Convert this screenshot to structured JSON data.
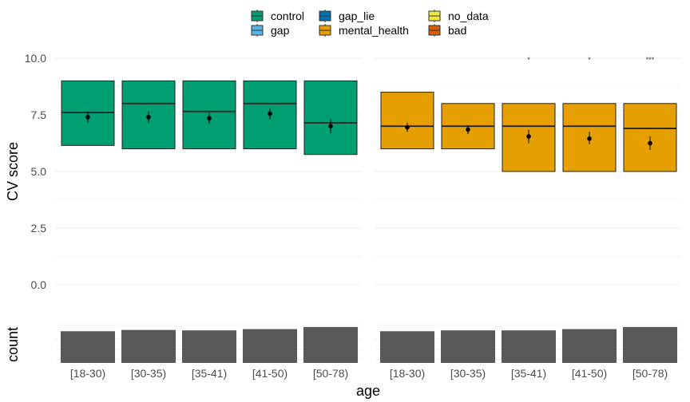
{
  "chart_data": {
    "type": "box",
    "legend": {
      "position": "top",
      "entries": [
        {
          "label": "control",
          "color": "#009E73"
        },
        {
          "label": "gap",
          "color": "#56B4E9"
        },
        {
          "label": "gap_lie",
          "color": "#0072B2"
        },
        {
          "label": "mental_health",
          "color": "#E69F00"
        },
        {
          "label": "no_data",
          "color": "#F0E442"
        },
        {
          "label": "bad",
          "color": "#D55E00"
        }
      ]
    },
    "ylabel": "CV score",
    "ylabel_count": "count",
    "xlabel": "age",
    "ylim": [
      -1.2,
      10.5
    ],
    "yticks": [
      "0.0",
      "2.5",
      "5.0",
      "7.5",
      "10.0"
    ],
    "grid": true,
    "categories": [
      "[18-30)",
      "[30-35)",
      "[35-41)",
      "[41-50)",
      "[50-78)"
    ],
    "panels": [
      {
        "group": "control",
        "color": "#009E73",
        "boxes": [
          {
            "q1": 6.15,
            "median": 7.6,
            "q3": 9.0,
            "mean": 7.4,
            "ci": [
              7.15,
              7.65
            ],
            "sig": ""
          },
          {
            "q1": 6.0,
            "median": 8.0,
            "q3": 9.0,
            "mean": 7.4,
            "ci": [
              7.15,
              7.65
            ],
            "sig": ""
          },
          {
            "q1": 6.0,
            "median": 7.65,
            "q3": 9.0,
            "mean": 7.35,
            "ci": [
              7.1,
              7.6
            ],
            "sig": ""
          },
          {
            "q1": 6.0,
            "median": 8.0,
            "q3": 9.0,
            "mean": 7.55,
            "ci": [
              7.3,
              7.8
            ],
            "sig": ""
          },
          {
            "q1": 5.75,
            "median": 7.15,
            "q3": 9.0,
            "mean": 7.0,
            "ci": [
              6.7,
              7.3
            ],
            "sig": ""
          }
        ],
        "counts": [
          0.75,
          0.78,
          0.77,
          0.8,
          0.85
        ]
      },
      {
        "group": "mental_health",
        "color": "#E69F00",
        "boxes": [
          {
            "q1": 6.0,
            "median": 7.0,
            "q3": 8.5,
            "mean": 6.95,
            "ci": [
              6.75,
              7.15
            ],
            "sig": ""
          },
          {
            "q1": 6.0,
            "median": 7.0,
            "q3": 8.0,
            "mean": 6.85,
            "ci": [
              6.65,
              7.05
            ],
            "sig": ""
          },
          {
            "q1": 5.0,
            "median": 7.0,
            "q3": 8.0,
            "mean": 6.55,
            "ci": [
              6.25,
              6.85
            ],
            "sig": "*"
          },
          {
            "q1": 5.0,
            "median": 7.0,
            "q3": 8.0,
            "mean": 6.45,
            "ci": [
              6.2,
              6.75
            ],
            "sig": "*"
          },
          {
            "q1": 5.0,
            "median": 6.9,
            "q3": 8.0,
            "mean": 6.25,
            "ci": [
              5.95,
              6.55
            ],
            "sig": "***"
          }
        ],
        "counts": [
          0.75,
          0.77,
          0.77,
          0.8,
          0.85
        ]
      }
    ]
  }
}
